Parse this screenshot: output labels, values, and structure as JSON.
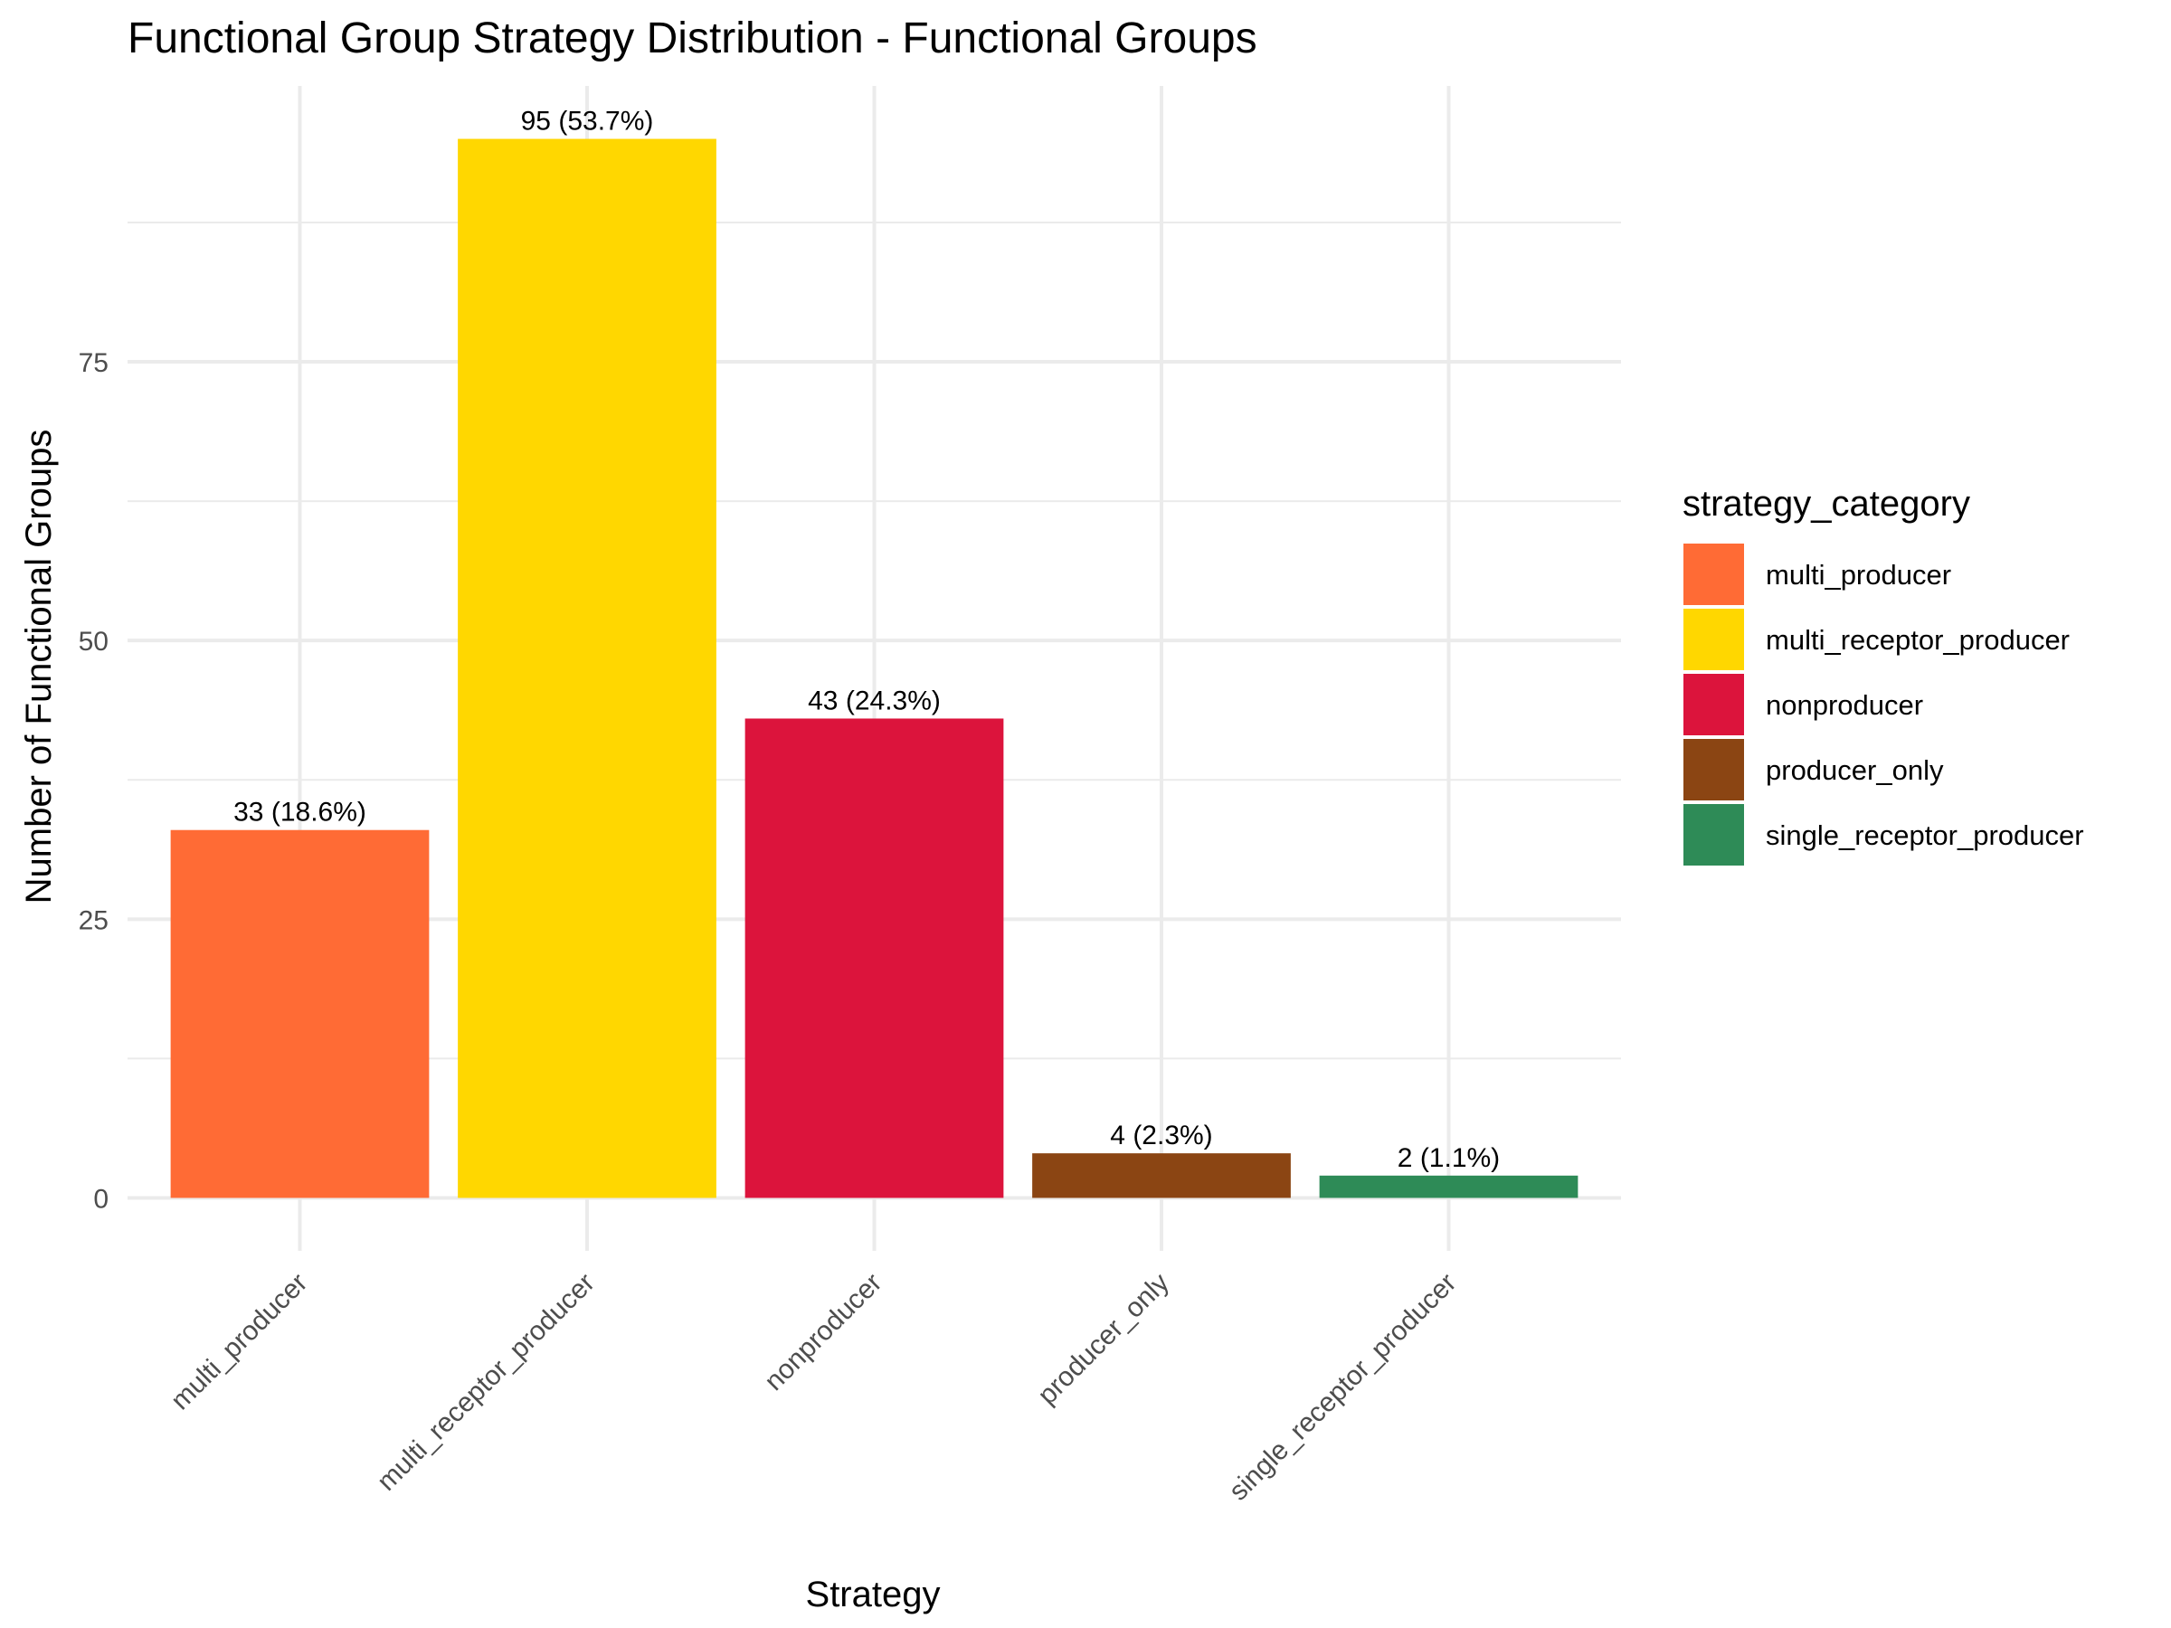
{
  "chart_data": {
    "type": "bar",
    "title": "Functional Group Strategy Distribution - Functional Groups",
    "xlabel": "Strategy",
    "ylabel": "Number of Functional Groups",
    "categories": [
      "multi_producer",
      "multi_receptor_producer",
      "nonproducer",
      "producer_only",
      "single_receptor_producer"
    ],
    "values": [
      33,
      95,
      43,
      4,
      2
    ],
    "data_labels": [
      "33 (18.6%)",
      "95 (53.7%)",
      "43 (24.3%)",
      "4 (2.3%)",
      "2 (1.1%)"
    ],
    "colors": [
      "#FF6B35",
      "#FFD700",
      "#DC143C",
      "#8B4513",
      "#2E8B57"
    ],
    "y_ticks": [
      0,
      25,
      50,
      75
    ],
    "y_tick_labels": [
      "0",
      "25",
      "50",
      "75"
    ],
    "ylim": [
      -4.75,
      99.75
    ],
    "grid": true,
    "legend": {
      "title": "strategy_category",
      "placement": "right",
      "entries": [
        "multi_producer",
        "multi_receptor_producer",
        "nonproducer",
        "producer_only",
        "single_receptor_producer"
      ]
    }
  }
}
